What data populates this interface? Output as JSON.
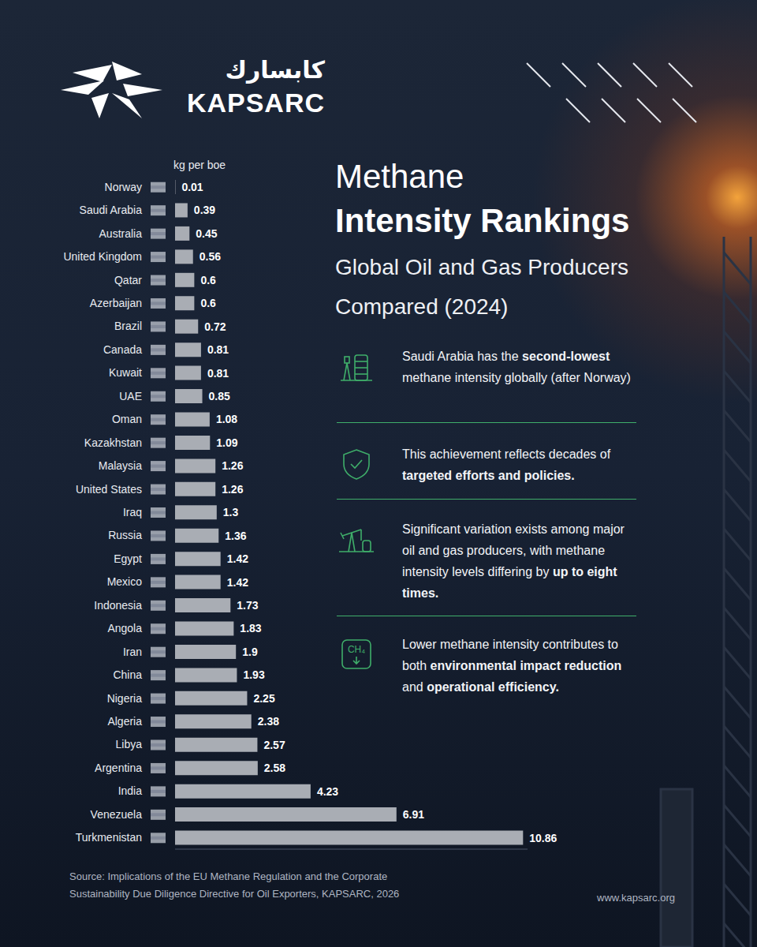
{
  "chart_data": {
    "type": "bar",
    "orientation": "horizontal",
    "title": [
      "Methane",
      "Intensity Rankings"
    ],
    "subtitle": "Global Oil and Gas Producers Compared (2024)",
    "xlabel": "kg per boe",
    "categories": [
      "Norway",
      "Saudi Arabia",
      "Australia",
      "United Kingdom",
      "Qatar",
      "Azerbaijan",
      "Brazil",
      "Canada",
      "Kuwait",
      "UAE",
      "Oman",
      "Kazakhstan",
      "Malaysia",
      "United States",
      "Iraq",
      "Russia",
      "Egypt",
      "Mexico",
      "Indonesia",
      "Angola",
      "Iran",
      "China",
      "Nigeria",
      "Algeria",
      "Libya",
      "Argentina",
      "India",
      "Venezuela",
      "Turkmenistan"
    ],
    "values": [
      0.01,
      0.39,
      0.45,
      0.56,
      0.6,
      0.6,
      0.72,
      0.81,
      0.81,
      0.85,
      1.08,
      1.09,
      1.26,
      1.26,
      1.3,
      1.36,
      1.42,
      1.42,
      1.73,
      1.83,
      1.9,
      1.93,
      2.25,
      2.38,
      2.57,
      2.58,
      4.23,
      6.91,
      10.86
    ],
    "color": "#a9adb4",
    "xlim": [
      0,
      11
    ],
    "data_labels": true,
    "tick_labels": "y",
    "grid": false
  },
  "logo": {
    "arabic": "كابسارك",
    "latin": "KAPSARC"
  },
  "notes": [
    {
      "segments": [
        "Saudi Arabia has the ",
        "second-lowest",
        " methane intensity globally (after Norway)"
      ]
    },
    {
      "segments": [
        "This achievement reflects decades of ",
        "targeted efforts and policies."
      ]
    },
    {
      "segments": [
        "Significant variation exists among major oil and gas producers, with methane intensity levels differing by ",
        "up to eight times."
      ]
    },
    {
      "segments": [
        "Lower methane intensity contributes to both ",
        "environmental impact reduction",
        " and ",
        "operational efficiency."
      ],
      "icon_text": "CH₄"
    }
  ],
  "source": "Source: Implications of the EU Methane Regulation and the Corporate Sustainability Due Diligence Directive for Oil Exporters, KAPSARC, 2026",
  "website": "www.kapsarc.org"
}
